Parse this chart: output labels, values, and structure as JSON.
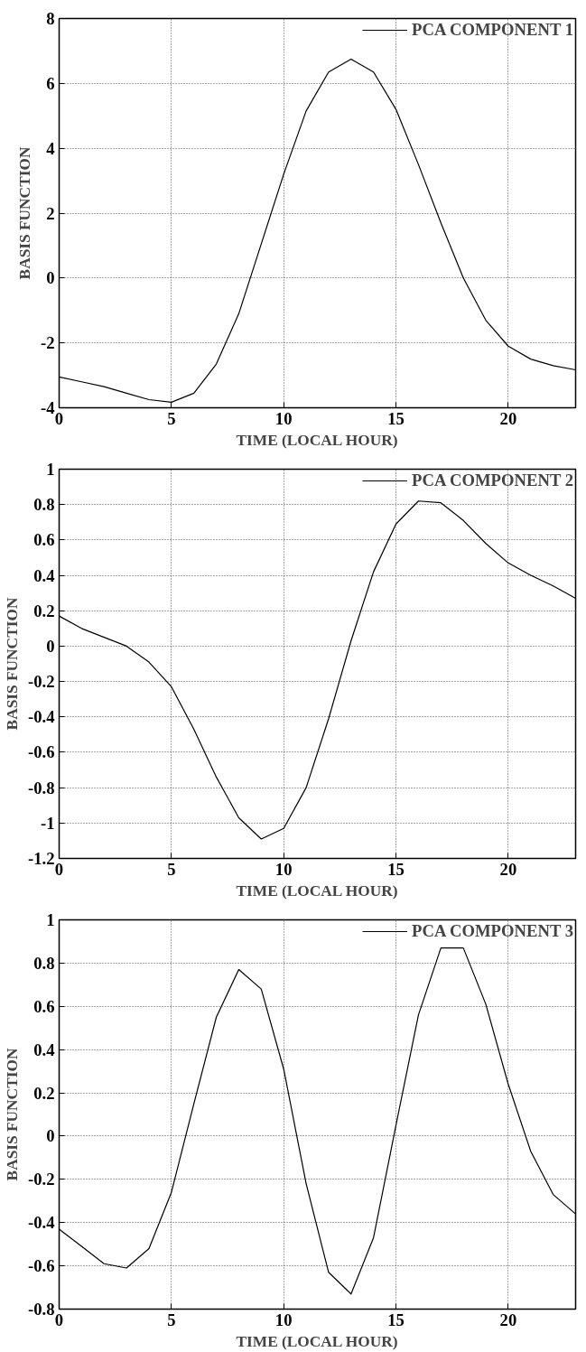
{
  "chart_data": [
    {
      "type": "line",
      "xlabel": "TIME (LOCAL HOUR)",
      "ylabel": "BASIS FUNCTION",
      "x": [
        0,
        1,
        2,
        3,
        4,
        5,
        6,
        7,
        8,
        9,
        10,
        11,
        12,
        13,
        14,
        15,
        16,
        17,
        18,
        19,
        20,
        21,
        22,
        23
      ],
      "series": [
        {
          "name": "PCA COMPONENT 1",
          "color": "#000000",
          "values": [
            -3.05,
            -3.2,
            -3.35,
            -3.55,
            -3.75,
            -3.83,
            -3.55,
            -2.65,
            -1.1,
            1.05,
            3.2,
            5.15,
            6.35,
            6.75,
            6.35,
            5.2,
            3.5,
            1.7,
            0.0,
            -1.3,
            -2.1,
            -2.5,
            -2.7,
            -2.83
          ]
        }
      ],
      "xlim": [
        0,
        23
      ],
      "ylim": [
        -4,
        8
      ],
      "xticks": [
        0,
        5,
        10,
        15,
        20
      ],
      "yticks": [
        -4,
        -2,
        0,
        2,
        4,
        6,
        8
      ],
      "grid": true,
      "legend": "top right",
      "line_style": "solid"
    },
    {
      "type": "line",
      "xlabel": "TIME (LOCAL HOUR)",
      "ylabel": "BASIS FUNCTION",
      "x": [
        0,
        1,
        2,
        3,
        4,
        5,
        6,
        7,
        8,
        9,
        10,
        11,
        12,
        13,
        14,
        15,
        16,
        17,
        18,
        19,
        20,
        21,
        22,
        23
      ],
      "series": [
        {
          "name": "PCA COMPONENT 2",
          "color": "#000000",
          "values": [
            0.17,
            0.1,
            0.05,
            0.0,
            -0.09,
            -0.23,
            -0.47,
            -0.74,
            -0.97,
            -1.09,
            -1.03,
            -0.8,
            -0.41,
            0.03,
            0.42,
            0.69,
            0.82,
            0.81,
            0.71,
            0.58,
            0.47,
            0.4,
            0.34,
            0.27
          ]
        }
      ],
      "xlim": [
        0,
        23
      ],
      "ylim": [
        -1.2,
        1
      ],
      "xticks": [
        0,
        5,
        10,
        15,
        20
      ],
      "yticks": [
        -1.2,
        -1,
        -0.8,
        -0.6,
        -0.4,
        -0.2,
        0,
        0.2,
        0.4,
        0.6,
        0.8,
        1
      ],
      "grid": true,
      "legend": "top right",
      "line_style": "solid"
    },
    {
      "type": "line",
      "xlabel": "TIME (LOCAL HOUR)",
      "ylabel": "BASIS FUNCTION",
      "x": [
        0,
        1,
        2,
        3,
        4,
        5,
        6,
        7,
        8,
        9,
        10,
        11,
        12,
        13,
        14,
        15,
        16,
        17,
        18,
        19,
        20,
        21,
        22,
        23
      ],
      "series": [
        {
          "name": "PCA COMPONENT 3",
          "color": "#000000",
          "values": [
            -0.43,
            -0.51,
            -0.59,
            -0.61,
            -0.52,
            -0.26,
            0.15,
            0.55,
            0.77,
            0.68,
            0.31,
            -0.22,
            -0.63,
            -0.73,
            -0.47,
            0.05,
            0.56,
            0.87,
            0.87,
            0.61,
            0.24,
            -0.07,
            -0.27,
            -0.36
          ]
        }
      ],
      "xlim": [
        0,
        23
      ],
      "ylim": [
        -0.8,
        1
      ],
      "xticks": [
        0,
        5,
        10,
        15,
        20
      ],
      "yticks": [
        -0.8,
        -0.6,
        -0.4,
        -0.2,
        0,
        0.2,
        0.4,
        0.6,
        0.8,
        1
      ],
      "grid": true,
      "legend": "top right",
      "line_style": "solid"
    }
  ]
}
